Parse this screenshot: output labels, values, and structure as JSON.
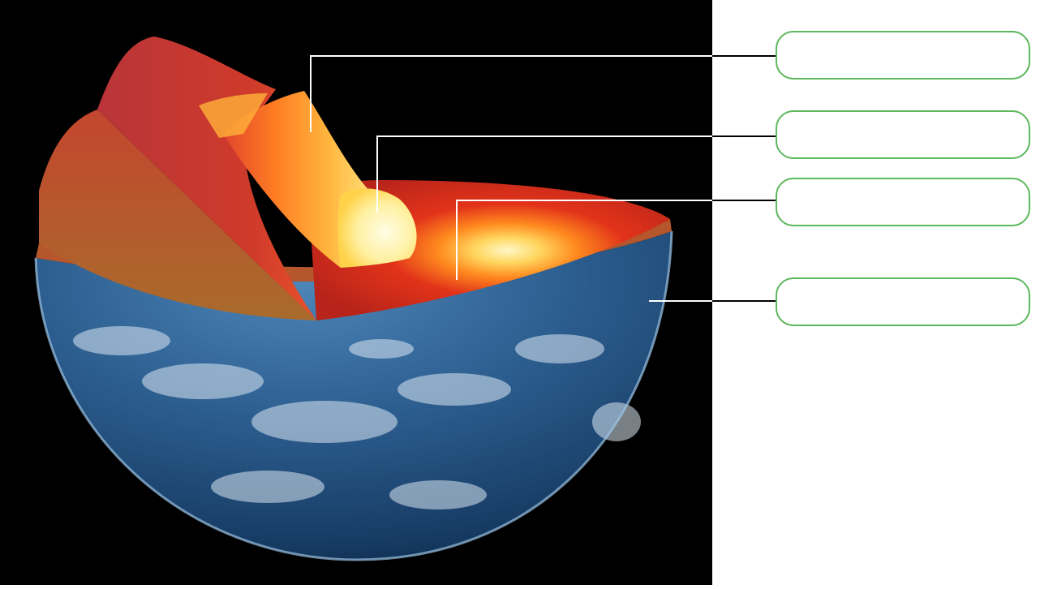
{
  "diagram": {
    "labels": [
      {
        "id": "label-1",
        "text": ""
      },
      {
        "id": "label-2",
        "text": ""
      },
      {
        "id": "label-3",
        "text": ""
      },
      {
        "id": "label-4",
        "text": ""
      }
    ]
  },
  "colors": {
    "background": "#000000",
    "box_border": "#5cb85c",
    "leader_line_dark": "#000000",
    "leader_line_light": "#ffffff",
    "crust": "#8a2a24",
    "mantle": "#e63a1c",
    "outer_core": "#ff9a1e",
    "inner_core": "#fff4b8",
    "ocean": "#2c5d8f"
  }
}
